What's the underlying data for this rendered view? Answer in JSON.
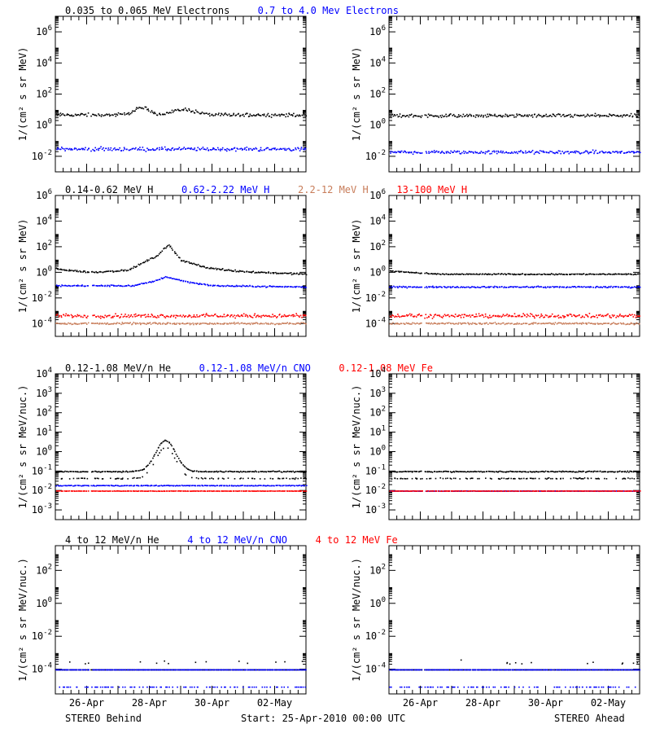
{
  "x_ticks": [
    "26-Apr",
    "28-Apr",
    "30-Apr",
    "02-May"
  ],
  "footer": {
    "left": "STEREO Behind",
    "center": "Start: 25-Apr-2010 00:00 UTC",
    "right": "STEREO Ahead"
  },
  "colors": {
    "black": "#000000",
    "blue": "#0000ff",
    "brown": "#c87d5a",
    "red": "#ff0000"
  },
  "chart_data": [
    {
      "type": "scatter",
      "row": 0,
      "title_parts": [
        {
          "text": "0.035 to 0.065 MeV Electrons",
          "color": "#000000"
        },
        {
          "text": "0.7 to 4.0 Mev Electrons",
          "color": "#0000ff"
        }
      ],
      "ylabel": "1/(cm² s sr MeV)",
      "ylog": true,
      "ylim_exp": [
        -3,
        7
      ],
      "ytick_exps": [
        -2,
        0,
        2,
        4,
        6
      ],
      "xlim_days": [
        0,
        8
      ],
      "panels": [
        {
          "spacecraft": "STEREO Behind",
          "series": [
            {
              "name": "0.035 to 0.065 MeV Electrons",
              "color": "#000000",
              "baseline": 0.7,
              "spread": 0.12,
              "events": [
                {
                  "day": 2.75,
                  "peak": 0.45,
                  "width": 0.35
                },
                {
                  "day": 4.1,
                  "peak": 0.35,
                  "width": 0.5
                }
              ]
            },
            {
              "name": "0.7 to 4.0 Mev Electrons",
              "color": "#0000ff",
              "baseline": -1.5,
              "spread": 0.13
            }
          ]
        },
        {
          "spacecraft": "STEREO Ahead",
          "series": [
            {
              "name": "0.035 to 0.065 MeV Electrons",
              "color": "#000000",
              "baseline": 0.65,
              "spread": 0.12
            },
            {
              "name": "0.7 to 4.0 Mev Electrons",
              "color": "#0000ff",
              "baseline": -1.7,
              "spread": 0.12
            }
          ]
        }
      ]
    },
    {
      "type": "scatter",
      "row": 1,
      "title_parts": [
        {
          "text": "0.14-0.62 MeV H",
          "color": "#000000"
        },
        {
          "text": "0.62-2.22 MeV H",
          "color": "#0000ff"
        },
        {
          "text": "2.2-12 MeV H",
          "color": "#c87d5a"
        },
        {
          "text": "13-100 MeV H",
          "color": "#ff0000"
        }
      ],
      "ylabel": "1/(cm² s sr MeV)",
      "ylog": true,
      "ylim_exp": [
        -5,
        6
      ],
      "ytick_exps": [
        -4,
        -2,
        0,
        2,
        4,
        6
      ],
      "xlim_days": [
        0,
        8
      ],
      "panels": [
        {
          "spacecraft": "STEREO Behind",
          "series": [
            {
              "name": "0.14-0.62 MeV H",
              "color": "#000000",
              "baseline": 0.1,
              "spread": 0.07,
              "trend": [
                [
                  0,
                  0.3
                ],
                [
                  1.1,
                  0.05
                ],
                [
                  2.3,
                  0.2
                ],
                [
                  3.2,
                  1.3
                ],
                [
                  3.6,
                  2.2
                ],
                [
                  4.0,
                  1.0
                ],
                [
                  4.8,
                  0.4
                ],
                [
                  6,
                  0.1
                ],
                [
                  8,
                  -0.1
                ]
              ]
            },
            {
              "name": "0.62-2.22 MeV H",
              "color": "#0000ff",
              "baseline": -1.0,
              "spread": 0.06,
              "trend": [
                [
                  0,
                  -1.0
                ],
                [
                  2.5,
                  -1.0
                ],
                [
                  3.2,
                  -0.6
                ],
                [
                  3.5,
                  -0.3
                ],
                [
                  4.2,
                  -0.7
                ],
                [
                  5,
                  -1.0
                ],
                [
                  8,
                  -1.1
                ]
              ]
            },
            {
              "name": "2.2-12 MeV H",
              "color": "#c87d5a",
              "baseline": -3.95,
              "spread": 0.08
            },
            {
              "name": "13-100 MeV H",
              "color": "#ff0000",
              "baseline": -3.35,
              "spread": 0.16
            }
          ]
        },
        {
          "spacecraft": "STEREO Ahead",
          "series": [
            {
              "name": "0.14-0.62 MeV H",
              "color": "#000000",
              "baseline": -0.1,
              "spread": 0.05,
              "trend": [
                [
                  0,
                  0.15
                ],
                [
                  1.5,
                  -0.1
                ],
                [
                  8,
                  -0.1
                ]
              ]
            },
            {
              "name": "0.62-2.22 MeV H",
              "color": "#0000ff",
              "baseline": -1.1,
              "spread": 0.06
            },
            {
              "name": "2.2-12 MeV H",
              "color": "#c87d5a",
              "baseline": -3.95,
              "spread": 0.08
            },
            {
              "name": "13-100 MeV H",
              "color": "#ff0000",
              "baseline": -3.35,
              "spread": 0.16
            }
          ]
        }
      ]
    },
    {
      "type": "scatter",
      "row": 2,
      "title_parts": [
        {
          "text": "0.12-1.08 MeV/n He",
          "color": "#000000"
        },
        {
          "text": "0.12-1.08 MeV/n CNO",
          "color": "#0000ff"
        },
        {
          "text": "0.12-1.08 MeV Fe",
          "color": "#ff0000"
        }
      ],
      "ylabel": "1/(cm² s sr MeV/nuc.)",
      "ylog": true,
      "ylim_exp": [
        -3.5,
        4
      ],
      "ytick_exps": [
        -3,
        -2,
        -1,
        0,
        1,
        2,
        3,
        4
      ],
      "xlim_days": [
        0,
        8
      ],
      "panels": [
        {
          "spacecraft": "STEREO Behind",
          "series": [
            {
              "name": "0.12-1.08 MeV/n He",
              "color": "#000000",
              "levels": [
                -1.0,
                -1.35
              ],
              "spread": 0.03,
              "events": [
                {
                  "day": 3.5,
                  "peak": 1.6,
                  "width": 0.45
                }
              ]
            },
            {
              "name": "0.12-1.08 MeV/n CNO",
              "color": "#0000ff",
              "levels": [
                -1.72
              ],
              "spread": 0.02
            },
            {
              "name": "0.12-1.08 MeV Fe",
              "color": "#ff0000",
              "levels": [
                -2.0
              ],
              "spread": 0.01
            }
          ]
        },
        {
          "spacecraft": "STEREO Ahead",
          "series": [
            {
              "name": "0.12-1.08 MeV/n He",
              "color": "#000000",
              "levels": [
                -1.0,
                -1.35
              ],
              "spread": 0.03
            },
            {
              "name": "0.12-1.08 MeV/n CNO",
              "color": "#0000ff",
              "levels": [
                -2.0
              ],
              "spread": 0.01
            },
            {
              "name": "0.12-1.08 MeV Fe",
              "color": "#ff0000",
              "levels": [
                -2.0
              ],
              "spread": 0.01
            }
          ]
        }
      ]
    },
    {
      "type": "scatter",
      "row": 3,
      "title_parts": [
        {
          "text": "4 to 12 MeV/n He",
          "color": "#000000"
        },
        {
          "text": "4 to 12 MeV/n CNO",
          "color": "#0000ff"
        },
        {
          "text": "4 to 12 MeV Fe",
          "color": "#ff0000"
        }
      ],
      "ylabel": "1/(cm² s sr MeV/nuc.)",
      "ylog": true,
      "ylim_exp": [
        -5.5,
        3.5
      ],
      "ytick_exps": [
        -4,
        -2,
        0,
        2
      ],
      "xlim_days": [
        0,
        8
      ],
      "panels": [
        {
          "spacecraft": "STEREO Behind",
          "series": [
            {
              "name": "4 to 12 MeV/n He",
              "color": "#000000",
              "levels": [
                -4.0
              ],
              "spread": 0.0,
              "sparse_above": -3.65
            },
            {
              "name": "4 to 12 MeV/n CNO",
              "color": "#0000ff",
              "levels": [
                -4.0,
                -5.05
              ],
              "spread": 0.0
            }
          ]
        },
        {
          "spacecraft": "STEREO Ahead",
          "series": [
            {
              "name": "4 to 12 MeV/n He",
              "color": "#000000",
              "levels": [
                -4.0
              ],
              "spread": 0.0,
              "sparse_above": -3.65
            },
            {
              "name": "4 to 12 MeV/n CNO",
              "color": "#0000ff",
              "levels": [
                -4.0,
                -5.05
              ],
              "spread": 0.0
            }
          ]
        }
      ]
    }
  ]
}
